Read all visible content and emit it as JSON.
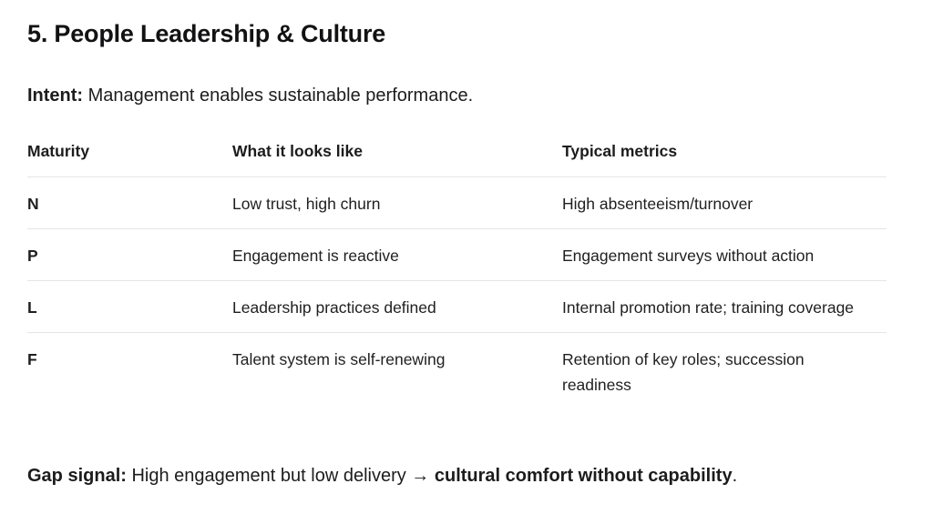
{
  "page": {
    "title": "5. People Leadership & Culture"
  },
  "intent": {
    "label": "Intent:",
    "text": " Management enables sustainable performance."
  },
  "table": {
    "headers": [
      "Maturity",
      "What it looks like",
      "Typical metrics"
    ],
    "rows": [
      {
        "maturity": "N",
        "looks_like": "Low trust, high churn",
        "metrics": "High absenteeism/turnover"
      },
      {
        "maturity": "P",
        "looks_like": "Engagement is reactive",
        "metrics": "Engagement surveys without action"
      },
      {
        "maturity": "L",
        "looks_like": "Leadership practices defined",
        "metrics": "Internal promotion rate; training coverage"
      },
      {
        "maturity": "F",
        "looks_like": "Talent system is self-renewing",
        "metrics": "Retention of key roles; succession readiness"
      }
    ]
  },
  "gap_signal": {
    "label": "Gap signal:",
    "text_regular": " High engagement but low delivery → ",
    "text_bold": "cultural comfort without capability",
    "text_end": "."
  },
  "colors": {
    "text": "#1c1c1e",
    "border": "#e5e5e5",
    "background": "#ffffff"
  }
}
